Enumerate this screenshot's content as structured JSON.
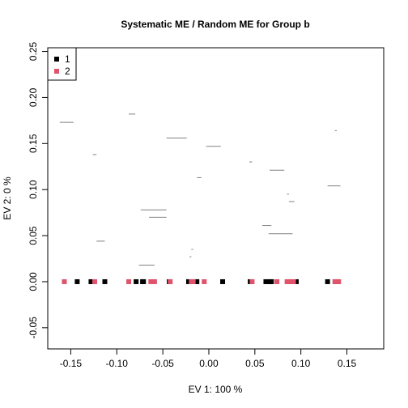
{
  "chart_data": {
    "type": "scatter",
    "title": "Systematic ME / Random ME for Group b",
    "xlabel": "EV 1: 100 %",
    "ylabel": "EV 2: 0 %",
    "xlim": [
      -0.175,
      0.19
    ],
    "ylim": [
      -0.073,
      0.254
    ],
    "x_ticks": [
      -0.15,
      -0.1,
      -0.05,
      0.0,
      0.05,
      0.1,
      0.15
    ],
    "x_tick_labels": [
      "-0.15",
      "-0.10",
      "-0.05",
      "0.00",
      "0.05",
      "0.10",
      "0.15"
    ],
    "y_ticks": [
      -0.05,
      0.0,
      0.05,
      0.1,
      0.15,
      0.2,
      0.25
    ],
    "y_tick_labels": [
      "-0.05",
      "0.00",
      "0.05",
      "0.10",
      "0.15",
      "0.20",
      "0.25"
    ],
    "grid": false,
    "legend_position": "top-left",
    "series": [
      {
        "name": "1",
        "color": "#000000",
        "marker": "square",
        "x": [
          -0.143,
          -0.128,
          -0.113,
          -0.079,
          -0.072,
          -0.071,
          -0.043,
          -0.022,
          -0.015,
          -0.013,
          0.015,
          0.045,
          0.062,
          0.066,
          0.068,
          0.095,
          0.129,
          0.139
        ],
        "y": [
          0,
          0,
          0,
          0,
          0,
          0,
          0,
          0,
          0,
          0,
          0,
          0,
          0,
          0,
          0,
          0,
          0,
          0
        ]
      },
      {
        "name": "2",
        "color": "#DF536B",
        "marker": "square",
        "x": [
          -0.157,
          -0.124,
          -0.087,
          -0.063,
          -0.059,
          -0.042,
          -0.019,
          -0.017,
          -0.005,
          0.047,
          0.074,
          0.085,
          0.088,
          0.089,
          0.092,
          0.137,
          0.141
        ],
        "y": [
          0,
          0,
          0,
          0,
          0,
          0,
          0,
          0,
          0,
          0,
          0,
          0,
          0,
          0,
          0,
          0,
          0
        ]
      }
    ],
    "segments": {
      "color": "#808080",
      "items": [
        {
          "x0": -0.162,
          "x1": -0.147,
          "y": 0.173
        },
        {
          "x0": -0.126,
          "x1": -0.122,
          "y": 0.138
        },
        {
          "x0": -0.087,
          "x1": -0.08,
          "y": 0.182
        },
        {
          "x0": -0.046,
          "x1": -0.024,
          "y": 0.156
        },
        {
          "x0": -0.003,
          "x1": 0.013,
          "y": 0.147
        },
        {
          "x0": -0.013,
          "x1": -0.008,
          "y": 0.113
        },
        {
          "x0": 0.044,
          "x1": 0.047,
          "y": 0.13
        },
        {
          "x0": 0.066,
          "x1": 0.082,
          "y": 0.121
        },
        {
          "x0": 0.129,
          "x1": 0.143,
          "y": 0.104
        },
        {
          "x0": 0.137,
          "x1": 0.139,
          "y": 0.164
        },
        {
          "x0": 0.085,
          "x1": 0.087,
          "y": 0.095
        },
        {
          "x0": 0.087,
          "x1": 0.093,
          "y": 0.087
        },
        {
          "x0": -0.074,
          "x1": -0.046,
          "y": 0.078
        },
        {
          "x0": -0.065,
          "x1": -0.046,
          "y": 0.07
        },
        {
          "x0": 0.058,
          "x1": 0.068,
          "y": 0.061
        },
        {
          "x0": 0.065,
          "x1": 0.091,
          "y": 0.052
        },
        {
          "x0": -0.122,
          "x1": -0.113,
          "y": 0.044
        },
        {
          "x0": -0.019,
          "x1": -0.017,
          "y": 0.035
        },
        {
          "x0": -0.021,
          "x1": -0.019,
          "y": 0.027
        },
        {
          "x0": -0.076,
          "x1": -0.059,
          "y": 0.018
        }
      ]
    }
  }
}
